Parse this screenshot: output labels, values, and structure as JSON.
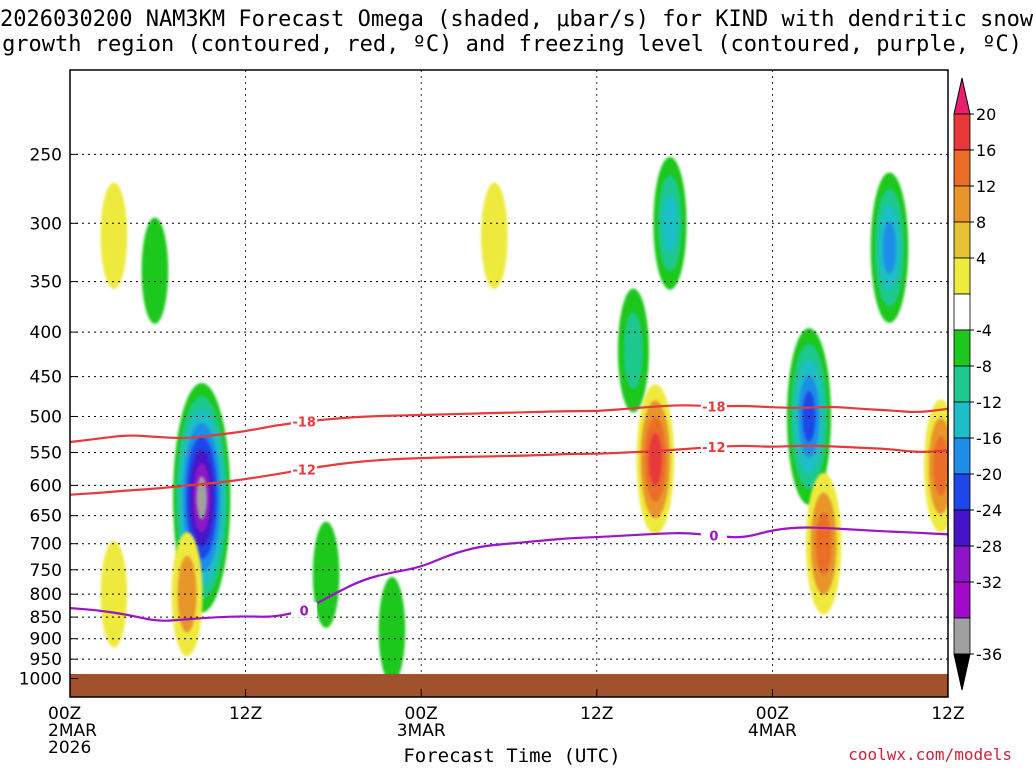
{
  "title": {
    "line1": "2026030200 NAM3KM Forecast Omega (shaded, μbar/s) for KIND with dendritic snow",
    "line2": "growth region (contoured, red, ºC) and freezing level (contoured, purple, ºC)"
  },
  "credit": "coolwx.com/models",
  "chart_data": {
    "type": "heatmap",
    "title": "2026030200 NAM3KM Forecast Omega (shaded, μbar/s) for KIND with dendritic snow growth region (contoured, red, ºC) and freezing level (contoured, purple, ºC)",
    "xlabel": "Forecast Time (UTC)",
    "ylabel": "",
    "x_range_hours": [
      0,
      60
    ],
    "y_range_mb": [
      200,
      1050
    ],
    "y_scale": "log-pressure",
    "grid": "dotted horizontal",
    "x_ticks": [
      {
        "hour": 0,
        "labels": [
          "00Z",
          "2MAR",
          "2026"
        ]
      },
      {
        "hour": 12,
        "labels": [
          "12Z"
        ]
      },
      {
        "hour": 24,
        "labels": [
          "00Z",
          "3MAR"
        ]
      },
      {
        "hour": 36,
        "labels": [
          "12Z"
        ]
      },
      {
        "hour": 48,
        "labels": [
          "00Z",
          "4MAR"
        ]
      },
      {
        "hour": 60,
        "labels": [
          "12Z"
        ]
      }
    ],
    "y_ticks": [
      "250",
      "300",
      "350",
      "400",
      "450",
      "500",
      "550",
      "600",
      "650",
      "700",
      "750",
      "800",
      "850",
      "900",
      "950",
      "1000"
    ],
    "y_tick_values": [
      250,
      300,
      350,
      400,
      450,
      500,
      550,
      600,
      650,
      700,
      750,
      800,
      850,
      900,
      950,
      1000
    ],
    "colorbar": {
      "labels": [
        "20",
        "16",
        "12",
        "8",
        "4",
        "-4",
        "-8",
        "-12",
        "-16",
        "-20",
        "-24",
        "-28",
        "-32",
        "-36"
      ],
      "levels": [
        20,
        16,
        12,
        8,
        4,
        -4,
        -8,
        -12,
        -16,
        -20,
        -24,
        -28,
        -32,
        -36
      ],
      "colors": [
        "#e81e6e",
        "#e8383a",
        "#ea6e28",
        "#e8962a",
        "#e6c232",
        "#eeea3e",
        "#ffffff",
        "#1ec81e",
        "#1ec88e",
        "#1ebec8",
        "#1e8ee8",
        "#1e46e8",
        "#4614c8",
        "#8e14c8",
        "#a00ac8",
        "#a0a0a0",
        "#000000"
      ]
    },
    "omega_features": [
      {
        "hour": 3.0,
        "mb": 310,
        "value": 6
      },
      {
        "hour": 3.0,
        "mb": 800,
        "value": 6
      },
      {
        "hour": 5.8,
        "mb": 340,
        "value": -6
      },
      {
        "hour": 9.0,
        "mb": 620,
        "value": -34
      },
      {
        "hour": 8.0,
        "mb": 800,
        "value": 10
      },
      {
        "hour": 17.5,
        "mb": 760,
        "value": -6
      },
      {
        "hour": 22.0,
        "mb": 880,
        "value": -6
      },
      {
        "hour": 29.0,
        "mb": 310,
        "value": 6
      },
      {
        "hour": 38.5,
        "mb": 420,
        "value": -10
      },
      {
        "hour": 40.0,
        "mb": 560,
        "value": 16
      },
      {
        "hour": 41.0,
        "mb": 300,
        "value": -12
      },
      {
        "hour": 50.5,
        "mb": 500,
        "value": -22
      },
      {
        "hour": 51.5,
        "mb": 700,
        "value": 14
      },
      {
        "hour": 56.0,
        "mb": 320,
        "value": -16
      },
      {
        "hour": 59.5,
        "mb": 570,
        "value": 12
      }
    ],
    "series": [
      {
        "name": "-18",
        "color": "#e83a3a",
        "x": [
          0,
          2,
          4,
          6,
          8,
          10,
          12,
          14,
          16,
          18,
          20,
          22,
          24,
          26,
          28,
          30,
          32,
          34,
          36,
          38,
          40,
          42,
          44,
          46,
          48,
          50,
          52,
          54,
          56,
          58,
          60
        ],
        "y": [
          535,
          530,
          525,
          528,
          530,
          525,
          520,
          512,
          507,
          503,
          500,
          499,
          498,
          497,
          496,
          495,
          494,
          493,
          493,
          490,
          487,
          485,
          487,
          486,
          488,
          489,
          487,
          490,
          492,
          495,
          490
        ]
      },
      {
        "name": "-12",
        "color": "#e83a3a",
        "x": [
          0,
          2,
          4,
          6,
          8,
          10,
          12,
          14,
          16,
          18,
          20,
          22,
          24,
          26,
          28,
          30,
          32,
          34,
          36,
          38,
          40,
          42,
          44,
          46,
          48,
          50,
          52,
          54,
          56,
          58,
          60
        ],
        "y": [
          615,
          612,
          608,
          605,
          600,
          596,
          590,
          583,
          575,
          568,
          563,
          560,
          558,
          557,
          556,
          555,
          554,
          552,
          552,
          550,
          548,
          545,
          542,
          540,
          542,
          540,
          541,
          543,
          545,
          550,
          547
        ]
      },
      {
        "name": "0",
        "color": "#9a14c8",
        "x": [
          0,
          2,
          4,
          6,
          8,
          10,
          12,
          14,
          16,
          18,
          20,
          22,
          24,
          26,
          28,
          30,
          32,
          34,
          36,
          38,
          40,
          42,
          44,
          46,
          48,
          50,
          52,
          54,
          56,
          58,
          60
        ],
        "y": [
          830,
          835,
          845,
          860,
          855,
          850,
          848,
          850,
          835,
          800,
          770,
          755,
          745,
          720,
          705,
          700,
          695,
          690,
          688,
          685,
          682,
          680,
          685,
          690,
          675,
          670,
          672,
          675,
          678,
          680,
          683
        ]
      }
    ]
  }
}
